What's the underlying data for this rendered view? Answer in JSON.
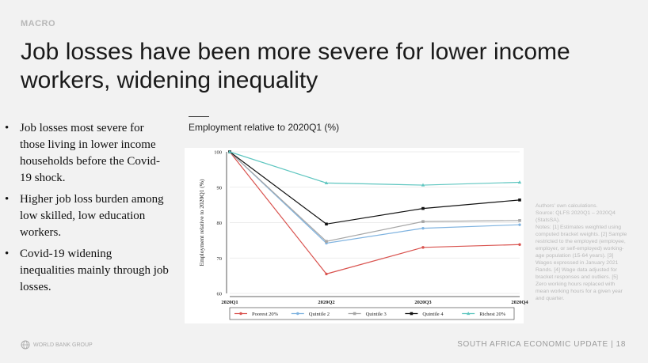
{
  "section": "MACRO",
  "title": "Job losses have been more severe for lower income workers, widening inequality",
  "bullets": [
    "Job losses most severe for those living in lower income households before the Covid-19 shock.",
    "Higher job loss burden among low skilled, low education workers.",
    "Covid-19 widening inequalities mainly through job losses."
  ],
  "chart_caption": "Employment relative to 2020Q1 (%)",
  "notes": [
    "Authors' own calculations.",
    "Source: QLFS 2020Q1 – 2020Q4 (StatsSA).",
    "Notes: [1] Estimates weighted using computed bracket weights. [2] Sample restricted to the employed (employee, employer, or self-employed) working-age population (15-64 years). [3] Wages expressed in January 2021 Rands. [4] Wage data adjusted for bracket responses and outliers. [5] Zero working hours replaced with mean working hours for a given year and quarter."
  ],
  "logo_text": "WORLD BANK GROUP",
  "footer": "SOUTH AFRICA ECONOMIC UPDATE | 18",
  "chart_data": {
    "type": "line",
    "categories": [
      "2020Q1",
      "2020Q2",
      "2020Q3",
      "2020Q4"
    ],
    "ylabel": "Employment relative to 2020Q1 (%)",
    "ylim": [
      60,
      100
    ],
    "yticks": [
      60,
      70,
      80,
      90,
      100
    ],
    "grid": "horizontal",
    "legend_position": "bottom",
    "series": [
      {
        "name": "Poorest 20%",
        "values": [
          100,
          65.5,
          73,
          73.8
        ],
        "color": "#d9534f",
        "marker": "circle"
      },
      {
        "name": "Quintile 2",
        "values": [
          100,
          74.2,
          78.4,
          79.4
        ],
        "color": "#7fb3e0",
        "marker": "circle"
      },
      {
        "name": "Quintile 3",
        "values": [
          100,
          74.7,
          80.3,
          80.6
        ],
        "color": "#a6a6a6",
        "marker": "square"
      },
      {
        "name": "Quintile 4",
        "values": [
          100,
          79.6,
          84,
          86.4
        ],
        "color": "#111111",
        "marker": "square"
      },
      {
        "name": "Richest 20%",
        "values": [
          100,
          91.2,
          90.6,
          91.4
        ],
        "color": "#5fc6c0",
        "marker": "triangle"
      }
    ]
  }
}
